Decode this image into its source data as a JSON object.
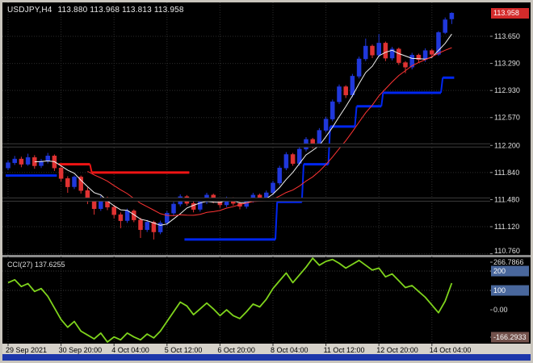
{
  "header": {
    "symbol_timeframe": "USDJPY,H4",
    "ohlc": "113.880 113.968 113.813 113.958"
  },
  "colors": {
    "frame": "#c9c5bd",
    "chart_bg": "#000000",
    "grid": "#2d2d2d",
    "grid_level": "#3a3a3a",
    "bull": "#2038dc",
    "bear": "#e03232",
    "trend_up": "#0026f0",
    "trend_down": "#f01414",
    "hline": "#000000",
    "hline_edge": "#3c3c3c",
    "separator": "#8a8a8a",
    "time_strip_bg": "#d6d2ca",
    "time_text": "#000000",
    "axis_text": "#e0e0e0",
    "level_box": "#49679c",
    "min_box": "#72514b",
    "price_box_bg": "#d42b2b",
    "bottom_bar": "#1d37ab"
  },
  "chart_data": {
    "type": "candlestick",
    "symbol": "USDJPY",
    "timeframe": "H4",
    "title": "USDJPY,H4 113.880 113.968 113.813 113.958",
    "ohlc_current": {
      "open": 113.88,
      "high": 113.968,
      "low": 113.813,
      "close": 113.958
    },
    "price_axis": {
      "ticks": [
        113.65,
        113.29,
        112.93,
        112.57,
        112.2,
        111.84,
        111.48,
        111.12,
        110.76
      ],
      "ylim": [
        110.745,
        114.1
      ],
      "current": 113.958,
      "current_label": "113.958"
    },
    "time_labels": [
      {
        "label": "29 Sep 2021",
        "bar": 0
      },
      {
        "label": "30 Sep 20:00",
        "bar": 8
      },
      {
        "label": "4 Oct 04:00",
        "bar": 16
      },
      {
        "label": "5 Oct 12:00",
        "bar": 24
      },
      {
        "label": "6 Oct 20:00",
        "bar": 32
      },
      {
        "label": "8 Oct 04:00",
        "bar": 40
      },
      {
        "label": "11 Oct 12:00",
        "bar": 48
      },
      {
        "label": "12 Oct 20:00",
        "bar": 56
      },
      {
        "label": "14 Oct 04:00",
        "bar": 64
      }
    ],
    "candles": [
      [
        111.9,
        112.0,
        111.87,
        111.97
      ],
      [
        111.97,
        112.06,
        111.94,
        112.02
      ],
      [
        112.02,
        112.05,
        111.91,
        111.95
      ],
      [
        111.95,
        112.09,
        111.93,
        112.04
      ],
      [
        112.04,
        112.07,
        111.89,
        111.93
      ],
      [
        111.93,
        112.02,
        111.9,
        111.99
      ],
      [
        111.99,
        112.1,
        111.96,
        112.06
      ],
      [
        112.06,
        112.08,
        111.86,
        111.9
      ],
      [
        111.9,
        111.93,
        111.72,
        111.76
      ],
      [
        111.76,
        111.79,
        111.57,
        111.65
      ],
      [
        111.65,
        111.8,
        111.62,
        111.78
      ],
      [
        111.78,
        111.8,
        111.56,
        111.6
      ],
      [
        111.6,
        111.64,
        111.42,
        111.47
      ],
      [
        111.47,
        111.5,
        111.28,
        111.36
      ],
      [
        111.36,
        111.53,
        111.33,
        111.5
      ],
      [
        111.5,
        111.52,
        111.34,
        111.38
      ],
      [
        111.38,
        111.41,
        111.23,
        111.28
      ],
      [
        111.28,
        111.31,
        111.1,
        111.2
      ],
      [
        111.2,
        111.36,
        111.17,
        111.33
      ],
      [
        111.33,
        111.35,
        111.18,
        111.21
      ],
      [
        111.21,
        111.24,
        110.97,
        111.08
      ],
      [
        111.08,
        111.21,
        111.05,
        111.18
      ],
      [
        111.18,
        111.2,
        110.95,
        111.05
      ],
      [
        111.05,
        111.2,
        111.02,
        111.17
      ],
      [
        111.17,
        111.33,
        111.14,
        111.3
      ],
      [
        111.3,
        111.45,
        111.27,
        111.42
      ],
      [
        111.42,
        111.55,
        111.39,
        111.52
      ],
      [
        111.52,
        111.54,
        111.4,
        111.43
      ],
      [
        111.43,
        111.46,
        111.31,
        111.35
      ],
      [
        111.35,
        111.48,
        111.32,
        111.45
      ],
      [
        111.45,
        111.57,
        111.42,
        111.54
      ],
      [
        111.54,
        111.56,
        111.43,
        111.46
      ],
      [
        111.46,
        111.49,
        111.37,
        111.41
      ],
      [
        111.41,
        111.52,
        111.38,
        111.49
      ],
      [
        111.49,
        111.51,
        111.4,
        111.43
      ],
      [
        111.43,
        111.45,
        111.35,
        111.39
      ],
      [
        111.39,
        111.5,
        111.36,
        111.47
      ],
      [
        111.47,
        111.57,
        111.44,
        111.54
      ],
      [
        111.54,
        111.56,
        111.46,
        111.49
      ],
      [
        111.49,
        111.6,
        111.46,
        111.57
      ],
      [
        111.57,
        111.73,
        111.54,
        111.7
      ],
      [
        111.7,
        111.93,
        111.67,
        111.9
      ],
      [
        111.9,
        112.11,
        111.87,
        112.08
      ],
      [
        112.08,
        112.1,
        111.93,
        111.96
      ],
      [
        111.96,
        112.18,
        111.93,
        112.15
      ],
      [
        112.15,
        112.31,
        112.12,
        112.28
      ],
      [
        112.28,
        112.3,
        112.16,
        112.2
      ],
      [
        112.2,
        112.43,
        112.17,
        112.4
      ],
      [
        112.4,
        112.58,
        112.37,
        112.55
      ],
      [
        112.55,
        112.81,
        112.52,
        112.78
      ],
      [
        112.78,
        113.01,
        112.75,
        112.98
      ],
      [
        112.98,
        113.0,
        112.83,
        112.87
      ],
      [
        112.87,
        113.15,
        112.84,
        113.12
      ],
      [
        113.12,
        113.38,
        113.09,
        113.35
      ],
      [
        113.35,
        113.62,
        113.32,
        113.52
      ],
      [
        113.52,
        113.54,
        113.36,
        113.4
      ],
      [
        113.4,
        113.68,
        113.37,
        113.56
      ],
      [
        113.56,
        113.58,
        113.32,
        113.36
      ],
      [
        113.36,
        113.51,
        113.33,
        113.48
      ],
      [
        113.48,
        113.5,
        113.27,
        113.3
      ],
      [
        113.3,
        113.32,
        113.16,
        113.24
      ],
      [
        113.24,
        113.43,
        113.21,
        113.4
      ],
      [
        113.4,
        113.42,
        113.3,
        113.34
      ],
      [
        113.34,
        113.49,
        113.31,
        113.46
      ],
      [
        113.46,
        113.48,
        113.37,
        113.41
      ],
      [
        113.41,
        113.72,
        113.39,
        113.7
      ],
      [
        113.7,
        113.9,
        113.68,
        113.87
      ],
      [
        113.88,
        113.968,
        113.813,
        113.958
      ]
    ],
    "moving_averages": [
      {
        "period": 5,
        "color": "#f0f0f0"
      },
      {
        "period": 13,
        "color": "#ff3434"
      }
    ],
    "trend_line_segments": [
      {
        "from": 0,
        "to": 7,
        "price": 111.8,
        "dir": "up"
      },
      {
        "from": 8,
        "to": 12,
        "price": 111.95,
        "dir": "down"
      },
      {
        "from": 13,
        "to": 27,
        "price": 111.84,
        "dir": "down"
      },
      {
        "from": 27,
        "to": 40,
        "price": 110.95,
        "dir": "up"
      },
      {
        "from": 41,
        "to": 44,
        "price": 111.45,
        "dir": "up"
      },
      {
        "from": 45,
        "to": 48,
        "price": 111.95,
        "dir": "up"
      },
      {
        "from": 49,
        "to": 52,
        "price": 112.45,
        "dir": "up"
      },
      {
        "from": 53,
        "to": 56,
        "price": 112.72,
        "dir": "up"
      },
      {
        "from": 57,
        "to": 65,
        "price": 112.9,
        "dir": "up"
      },
      {
        "from": 66,
        "to": 67,
        "price": 113.1,
        "dir": "up"
      }
    ],
    "horizontal_lines": [
      112.2,
      111.48
    ],
    "indicator": {
      "name": "CCI",
      "period": 27,
      "current": 137.6255,
      "label": "CCI(27) 137.6255",
      "color": "#7fd41c",
      "scale_max": 266.7866,
      "scale_min": -166.2933,
      "levels": [
        200,
        100
      ],
      "axis_ticks": [
        {
          "value": 266.7866,
          "label": "266.7866",
          "box": null
        },
        {
          "value": 200,
          "label": "200",
          "box": "blue"
        },
        {
          "value": 100,
          "label": "100",
          "box": "blue"
        },
        {
          "value": 0,
          "label": "0.00",
          "box": null
        },
        {
          "value": -166.2933,
          "label": "-166.2933",
          "box": "dim"
        }
      ],
      "values": [
        140,
        155,
        120,
        135,
        95,
        110,
        70,
        10,
        -50,
        -90,
        -60,
        -110,
        -130,
        -150,
        -120,
        -166.2933,
        -140,
        -155,
        -120,
        -140,
        -155,
        -125,
        -145,
        -110,
        -60,
        -10,
        40,
        20,
        -25,
        5,
        35,
        5,
        -30,
        0,
        -30,
        -45,
        -10,
        30,
        15,
        55,
        110,
        150,
        190,
        140,
        180,
        220,
        266.7866,
        230,
        250,
        260,
        240,
        215,
        235,
        255,
        230,
        205,
        215,
        170,
        185,
        150,
        115,
        125,
        95,
        65,
        25,
        -15,
        45,
        137.6255
      ]
    }
  }
}
